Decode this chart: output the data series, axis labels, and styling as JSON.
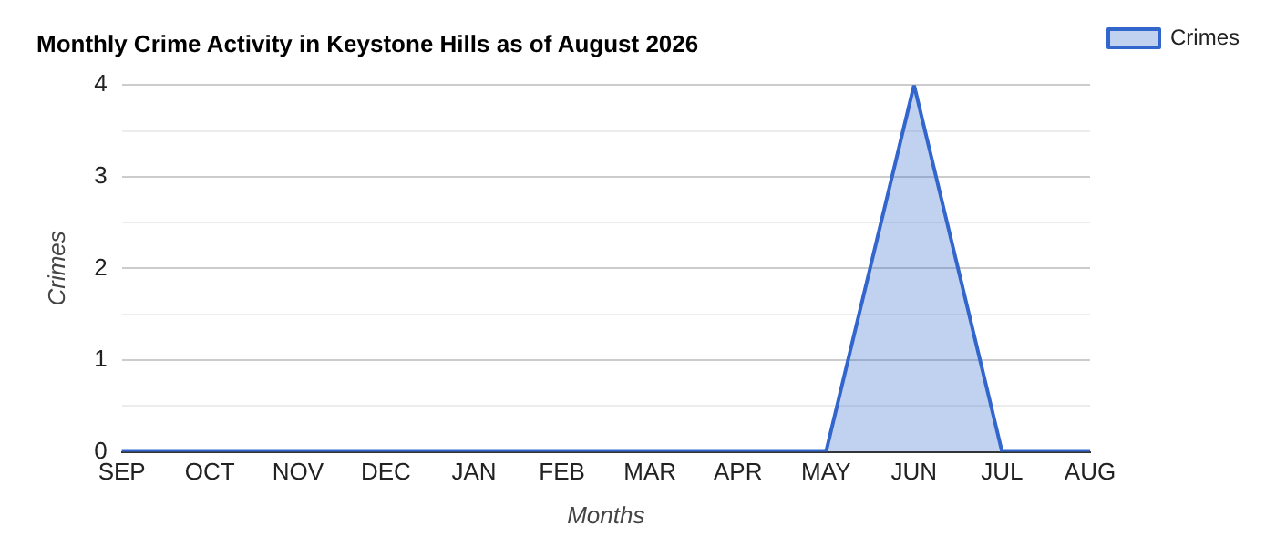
{
  "chart_data": {
    "type": "area",
    "title": "Monthly Crime Activity in Keystone Hills as of August 2026",
    "xlabel": "Months",
    "ylabel": "Crimes",
    "categories": [
      "SEP",
      "OCT",
      "NOV",
      "DEC",
      "JAN",
      "FEB",
      "MAR",
      "APR",
      "MAY",
      "JUN",
      "JUL",
      "AUG"
    ],
    "series": [
      {
        "name": "Crimes",
        "color": "#3366cc",
        "values": [
          0,
          0,
          0,
          0,
          0,
          0,
          0,
          0,
          0,
          4,
          0,
          0
        ]
      }
    ],
    "ylim": [
      0,
      4
    ],
    "yticks": [
      0,
      {
        "value": 0.5,
        "label": null
      },
      1,
      {
        "value": 1.5,
        "label": null
      },
      2,
      {
        "value": 2.5,
        "label": null
      },
      3,
      {
        "value": 3.5,
        "label": null
      },
      4
    ],
    "grid": "y",
    "legend": "top right",
    "marker": "none"
  }
}
